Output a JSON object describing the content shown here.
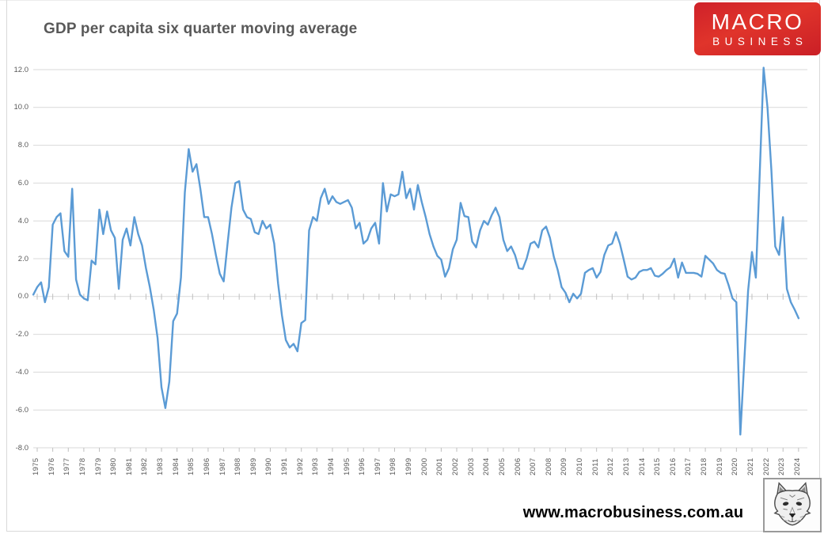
{
  "title": "GDP per capita six quarter moving average",
  "logo": {
    "line1": "MACRO",
    "line2": "BUSINESS",
    "bg_color": "#d7282a",
    "text_color": "#ffffff"
  },
  "footer": {
    "website": "www.macrobusiness.com.au"
  },
  "chart_data": {
    "type": "line",
    "title": "GDP per capita six quarter moving average",
    "xlabel": "",
    "ylabel": "",
    "ylim": [
      -8.0,
      12.0
    ],
    "y_tick_step": 2.0,
    "grid": true,
    "legend": false,
    "line_color": "#5b9bd5",
    "frequency": "quarterly",
    "x_start": "1974-Q4",
    "x_end": "2024-Q1",
    "y_tick_labels": [
      "12.0",
      "10.0",
      "8.0",
      "6.0",
      "4.0",
      "2.0",
      "0.0",
      "-2.0",
      "-4.0",
      "-6.0",
      "-8.0"
    ],
    "x_tick_labels": [
      "1975",
      "1976",
      "1977",
      "1978",
      "1979",
      "1980",
      "1981",
      "1982",
      "1983",
      "1984",
      "1985",
      "1986",
      "1987",
      "1988",
      "1989",
      "1990",
      "1991",
      "1992",
      "1993",
      "1994",
      "1995",
      "1996",
      "1997",
      "1998",
      "1999",
      "2000",
      "2001",
      "2002",
      "2003",
      "2004",
      "2005",
      "2006",
      "2007",
      "2008",
      "2009",
      "2010",
      "2011",
      "2012",
      "2013",
      "2014",
      "2015",
      "2016",
      "2017",
      "2018",
      "2019",
      "2020",
      "2021",
      "2022",
      "2023",
      "2024"
    ],
    "values": [
      0.1,
      0.5,
      0.75,
      -0.3,
      0.5,
      3.8,
      4.2,
      4.4,
      2.4,
      2.1,
      5.7,
      0.9,
      0.1,
      -0.1,
      -0.2,
      1.9,
      1.7,
      4.6,
      3.3,
      4.5,
      3.5,
      3.1,
      0.4,
      3.0,
      3.6,
      2.7,
      4.2,
      3.3,
      2.7,
      1.5,
      0.5,
      -0.7,
      -2.2,
      -4.8,
      -5.9,
      -4.5,
      -1.3,
      -0.9,
      1.0,
      5.5,
      7.8,
      6.6,
      7.0,
      5.7,
      4.2,
      4.2,
      3.3,
      2.2,
      1.2,
      0.8,
      2.8,
      4.7,
      6.0,
      6.1,
      4.6,
      4.2,
      4.1,
      3.4,
      3.3,
      4.0,
      3.6,
      3.8,
      2.8,
      0.7,
      -1.0,
      -2.3,
      -2.7,
      -2.5,
      -2.9,
      -1.4,
      -1.25,
      3.5,
      4.2,
      4.0,
      5.2,
      5.7,
      4.9,
      5.3,
      5.0,
      4.9,
      5.0,
      5.1,
      4.7,
      3.6,
      3.9,
      2.8,
      3.0,
      3.6,
      3.9,
      2.8,
      6.0,
      4.5,
      5.4,
      5.3,
      5.4,
      6.6,
      5.2,
      5.7,
      4.6,
      5.9,
      5.0,
      4.2,
      3.3,
      2.65,
      2.15,
      1.95,
      1.05,
      1.5,
      2.5,
      3.0,
      4.95,
      4.25,
      4.2,
      2.9,
      2.6,
      3.5,
      4.0,
      3.8,
      4.3,
      4.7,
      4.2,
      3.0,
      2.4,
      2.65,
      2.2,
      1.5,
      1.45,
      2.0,
      2.8,
      2.9,
      2.6,
      3.5,
      3.7,
      3.1,
      2.1,
      1.4,
      0.5,
      0.2,
      -0.3,
      0.15,
      -0.1,
      0.15,
      1.25,
      1.4,
      1.5,
      1.0,
      1.3,
      2.2,
      2.7,
      2.8,
      3.4,
      2.8,
      1.95,
      1.05,
      0.9,
      1.0,
      1.3,
      1.4,
      1.4,
      1.5,
      1.1,
      1.05,
      1.2,
      1.4,
      1.55,
      2.0,
      1.0,
      1.8,
      1.25,
      1.25,
      1.25,
      1.2,
      1.05,
      2.15,
      1.95,
      1.75,
      1.4,
      1.25,
      1.2,
      0.6,
      -0.1,
      -0.3,
      -7.3,
      -3.5,
      0.3,
      2.35,
      1.0,
      6.5,
      12.1,
      10.0,
      6.7,
      2.65,
      2.2,
      4.2,
      0.4,
      -0.3,
      -0.7,
      -1.15
    ]
  }
}
